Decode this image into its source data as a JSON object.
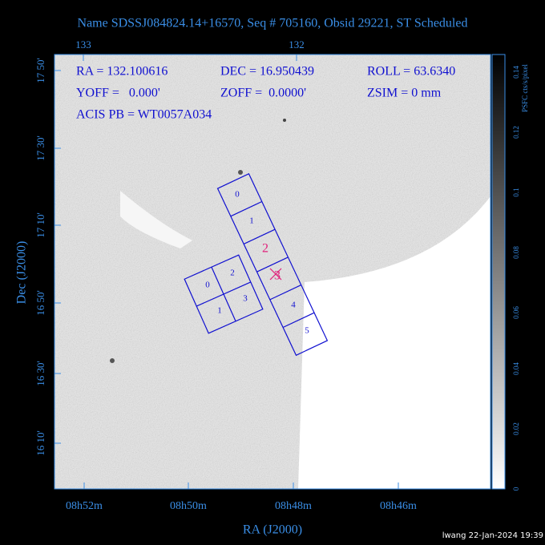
{
  "header": {
    "title": "Name SDSSJ084824.14+16570, Seq # 705160, Obsid 29221, ST Scheduled"
  },
  "info": [
    "RA = 132.100616",
    "DEC = 16.950439",
    "ROLL = 63.6340",
    "YOFF =   0.000'",
    "ZOFF =  0.0000'",
    "ZSIM = 0 mm",
    "ACIS PB = WT0057A034"
  ],
  "axes": {
    "top_ticks": [
      "133",
      "132"
    ],
    "left_ticks": [
      "17 50'",
      "17 30'",
      "17 10'",
      "16 50'",
      "16 30'",
      "16 10'"
    ],
    "bottom_ticks": [
      "08h52m",
      "08h50m",
      "08h48m",
      "08h46m"
    ],
    "x_label": "RA (J2000)",
    "y_label": "Dec (J2000)"
  },
  "colorbar": {
    "ticks": [
      "0",
      "0.02",
      "0.04",
      "0.06",
      "0.08",
      "0.1",
      "0.12",
      "0.14"
    ],
    "label": "PSFC cts/s/pixel"
  },
  "chips": {
    "array": [
      "0",
      "2",
      "1",
      "3"
    ],
    "chain": [
      "0",
      "1",
      "2",
      "3",
      "4",
      "5"
    ]
  },
  "footer": "lwang 22-Jan-2024 19:39"
}
